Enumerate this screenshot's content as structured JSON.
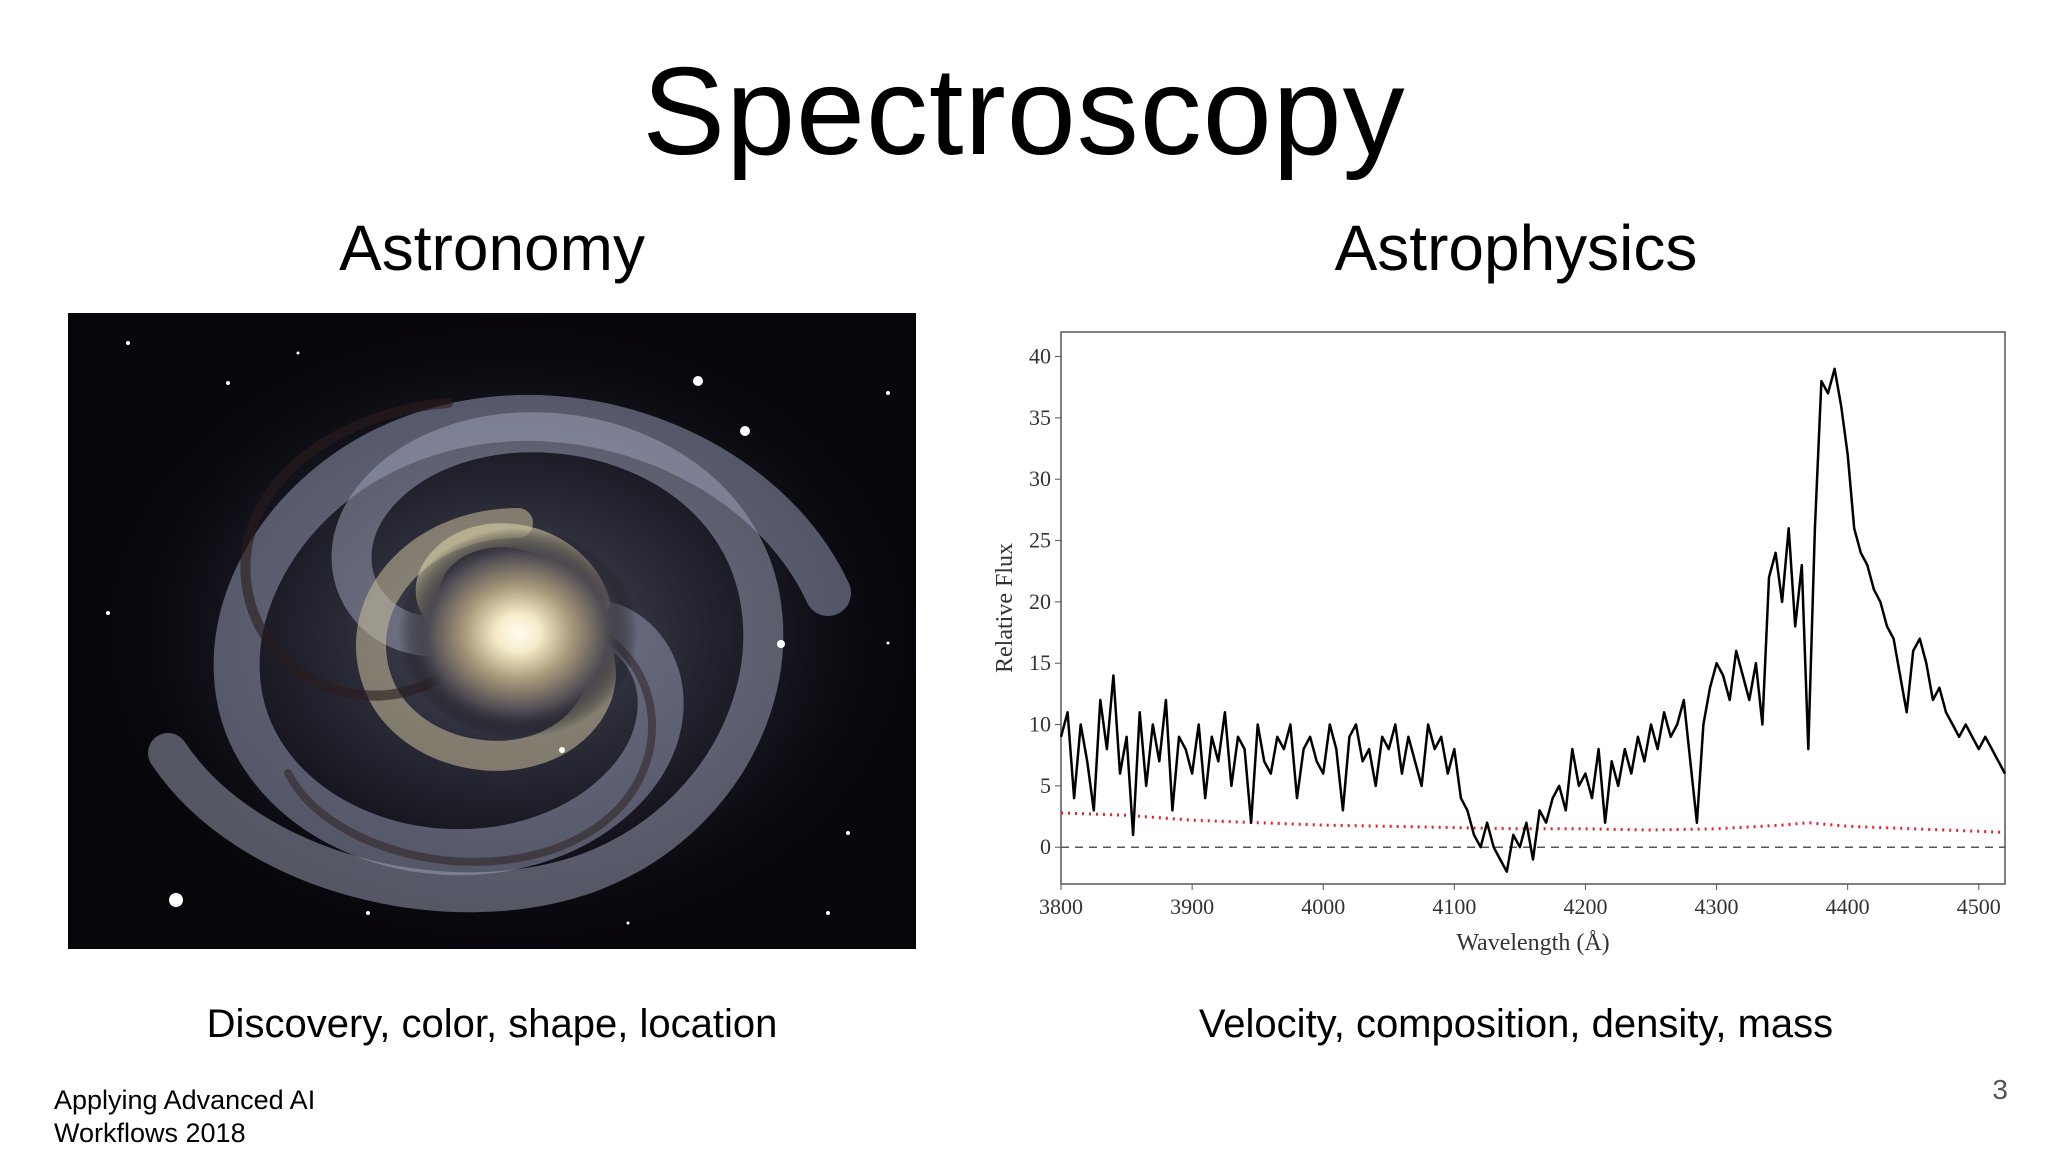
{
  "slide": {
    "title": "Spectroscopy",
    "left_heading": "Astronomy",
    "right_heading": "Astrophysics",
    "left_caption": "Discovery, color, shape, location",
    "right_caption": "Velocity, composition, density, mass",
    "footer_line1": "Applying Advanced AI",
    "footer_line2": "Workflows  2018",
    "page_number": "3"
  },
  "colors": {
    "spectrum": "#000000",
    "error_dots": "#e8202a",
    "zero_line": "#555555",
    "galaxy_background": "#07060b"
  },
  "chart_data": {
    "type": "line",
    "title": "",
    "xlabel": "Wavelength (Å)",
    "ylabel": "Relative Flux",
    "xlim": [
      3800,
      4520
    ],
    "ylim": [
      -3,
      42
    ],
    "xticks": [
      3800,
      3900,
      4000,
      4100,
      4200,
      4300,
      4400,
      4500
    ],
    "yticks": [
      0,
      5,
      10,
      15,
      20,
      25,
      30,
      35,
      40
    ],
    "zero_line": true,
    "grid": false,
    "series": [
      {
        "style": "solid-black",
        "x": [
          3800,
          3805,
          3810,
          3815,
          3820,
          3825,
          3830,
          3835,
          3840,
          3845,
          3850,
          3855,
          3860,
          3865,
          3870,
          3875,
          3880,
          3885,
          3890,
          3895,
          3900,
          3905,
          3910,
          3915,
          3920,
          3925,
          3930,
          3935,
          3940,
          3945,
          3950,
          3955,
          3960,
          3965,
          3970,
          3975,
          3980,
          3985,
          3990,
          3995,
          4000,
          4005,
          4010,
          4015,
          4020,
          4025,
          4030,
          4035,
          4040,
          4045,
          4050,
          4055,
          4060,
          4065,
          4070,
          4075,
          4080,
          4085,
          4090,
          4095,
          4100,
          4105,
          4110,
          4115,
          4120,
          4125,
          4130,
          4135,
          4140,
          4145,
          4150,
          4155,
          4160,
          4165,
          4170,
          4175,
          4180,
          4185,
          4190,
          4195,
          4200,
          4205,
          4210,
          4215,
          4220,
          4225,
          4230,
          4235,
          4240,
          4245,
          4250,
          4255,
          4260,
          4265,
          4270,
          4275,
          4280,
          4285,
          4290,
          4295,
          4300,
          4305,
          4310,
          4315,
          4320,
          4325,
          4330,
          4335,
          4340,
          4345,
          4350,
          4355,
          4360,
          4365,
          4370,
          4375,
          4380,
          4385,
          4390,
          4395,
          4400,
          4405,
          4410,
          4415,
          4420,
          4425,
          4430,
          4435,
          4440,
          4445,
          4450,
          4455,
          4460,
          4465,
          4470,
          4475,
          4480,
          4485,
          4490,
          4495,
          4500,
          4505,
          4510,
          4515,
          4520
        ],
        "y": [
          9,
          11,
          4,
          10,
          7,
          3,
          12,
          8,
          14,
          6,
          9,
          1,
          11,
          5,
          10,
          7,
          12,
          3,
          9,
          8,
          6,
          10,
          4,
          9,
          7,
          11,
          5,
          9,
          8,
          2,
          10,
          7,
          6,
          9,
          8,
          10,
          4,
          8,
          9,
          7,
          6,
          10,
          8,
          3,
          9,
          10,
          7,
          8,
          5,
          9,
          8,
          10,
          6,
          9,
          7,
          5,
          10,
          8,
          9,
          6,
          8,
          4,
          3,
          1,
          0,
          2,
          0,
          -1,
          -2,
          1,
          0,
          2,
          -1,
          3,
          2,
          4,
          5,
          3,
          8,
          5,
          6,
          4,
          8,
          2,
          7,
          5,
          8,
          6,
          9,
          7,
          10,
          8,
          11,
          9,
          10,
          12,
          7,
          2,
          10,
          13,
          15,
          14,
          12,
          16,
          14,
          12,
          15,
          10,
          22,
          24,
          20,
          26,
          18,
          23,
          8,
          26,
          38,
          37,
          39,
          36,
          32,
          26,
          24,
          23,
          21,
          20,
          18,
          17,
          14,
          11,
          16,
          17,
          15,
          12,
          13,
          11,
          10,
          9,
          10,
          9,
          8,
          9,
          8,
          7,
          6
        ]
      },
      {
        "style": "dotted-red",
        "x": [
          3800,
          3850,
          3900,
          3950,
          4000,
          4050,
          4100,
          4150,
          4200,
          4250,
          4300,
          4350,
          4370,
          4400,
          4450,
          4500,
          4520
        ],
        "y": [
          2.8,
          2.6,
          2.2,
          2.0,
          1.8,
          1.7,
          1.6,
          1.5,
          1.5,
          1.4,
          1.5,
          1.8,
          2.0,
          1.7,
          1.5,
          1.3,
          1.2
        ]
      }
    ]
  }
}
